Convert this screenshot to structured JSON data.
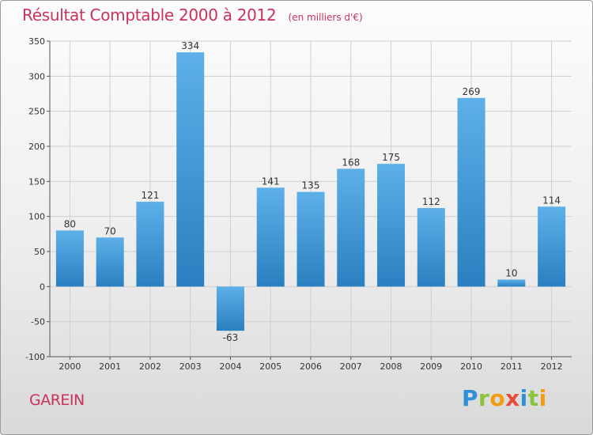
{
  "header": {
    "title": "Résultat Comptable 2000 à 2012",
    "unit": "(en milliers d'€)"
  },
  "footer": {
    "commune": "GAREIN",
    "logo": {
      "letters": [
        "P",
        "r",
        "o",
        "x",
        "i",
        "t",
        "i"
      ],
      "colors": [
        "#2f8fd8",
        "#8ac43f",
        "#f39c12",
        "#e74c3c",
        "#2f8fd8",
        "#8ac43f",
        "#f39c12"
      ]
    }
  },
  "colors": {
    "bar_light": "#5db0e8",
    "bar_dark": "#2a7fc0",
    "grid": "#cfcfcf",
    "title": "#c8325b"
  },
  "chart_data": {
    "type": "bar",
    "title": "Résultat Comptable 2000 à 2012",
    "xlabel": "",
    "ylabel": "(en milliers d'€)",
    "categories": [
      "2000",
      "2001",
      "2002",
      "2003",
      "2004",
      "2005",
      "2006",
      "2007",
      "2008",
      "2009",
      "2010",
      "2011",
      "2012"
    ],
    "values": [
      80,
      70,
      121,
      334,
      -63,
      141,
      135,
      168,
      175,
      112,
      269,
      10,
      114
    ],
    "ylim": [
      -100,
      350
    ],
    "yticks": [
      -100,
      -50,
      0,
      50,
      100,
      150,
      200,
      250,
      300,
      350
    ],
    "grid": true,
    "legend": "none"
  }
}
